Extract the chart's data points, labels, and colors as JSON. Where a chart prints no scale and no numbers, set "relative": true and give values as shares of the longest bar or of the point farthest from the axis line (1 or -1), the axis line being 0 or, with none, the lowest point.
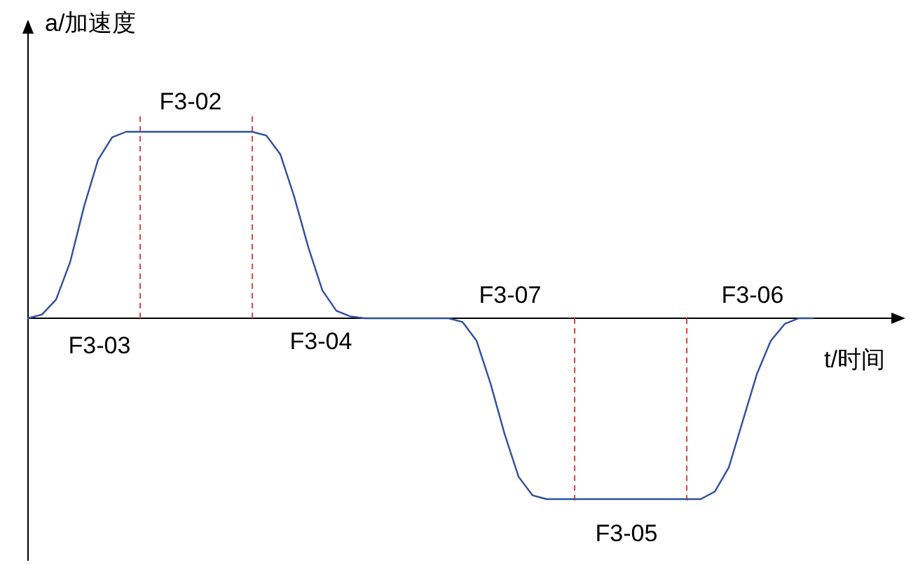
{
  "chart_data": {
    "type": "line",
    "relative": true,
    "line_style": "solid",
    "xlabel": "t/时间",
    "ylabel": "a/加速度",
    "categories": [
      null,
      null,
      null,
      null,
      null,
      null,
      null,
      null,
      null,
      null,
      null,
      null,
      null,
      null,
      null,
      null,
      null,
      null,
      null,
      null,
      null,
      null,
      null,
      null,
      null,
      null,
      null,
      null,
      null,
      null,
      null,
      null,
      null,
      null,
      null,
      null,
      null,
      null,
      null,
      null,
      null,
      null,
      null,
      null,
      null,
      null,
      null,
      null,
      null,
      null,
      null,
      null,
      null,
      null,
      null,
      null,
      null
    ],
    "series": [
      {
        "color": "#2f4f9f",
        "values": [
          0,
          0.02,
          0.1,
          0.3,
          0.6,
          0.85,
          0.97,
          1,
          1,
          1,
          1,
          1,
          1,
          1,
          1,
          1,
          1,
          0.98,
          0.88,
          0.65,
          0.38,
          0.15,
          0.04,
          0.01,
          0,
          0,
          0,
          0,
          0,
          0,
          0,
          -0.02,
          -0.12,
          -0.35,
          -0.62,
          -0.85,
          -0.95,
          -0.97,
          -0.97,
          -0.97,
          -0.97,
          -0.97,
          -0.97,
          -0.97,
          -0.97,
          -0.97,
          -0.97,
          -0.97,
          -0.97,
          -0.93,
          -0.8,
          -0.55,
          -0.3,
          -0.12,
          -0.03,
          0,
          0
        ]
      }
    ],
    "annotations": [
      "F3-02",
      "F3-03",
      "F3-04",
      "F3-07",
      "F3-06",
      "F3-05"
    ]
  }
}
